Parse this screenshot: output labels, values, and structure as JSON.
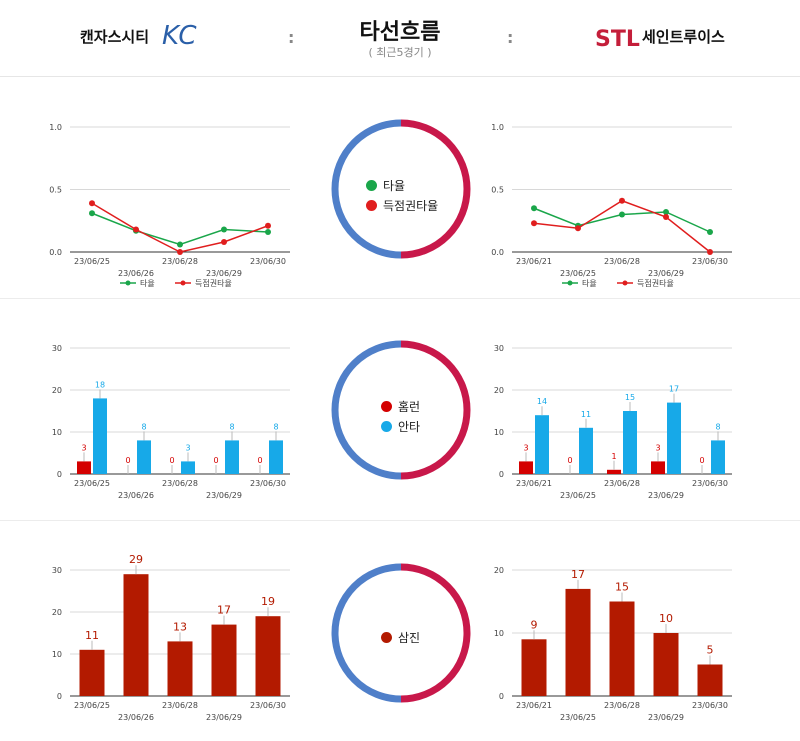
{
  "header": {
    "title": "타선흐름",
    "subtitle": "( 최근5경기 )",
    "left_team": "캔자스시티",
    "right_team": "세인트루이스",
    "left_logo": "KC",
    "right_logo": "STL",
    "colon": ":"
  },
  "colors": {
    "batting": "#1aa64a",
    "risp": "#e01e1e",
    "homerun": "#d40000",
    "hits": "#17a9e8",
    "strikeout": "#b31a00",
    "ring_left": "#4f7fc9",
    "ring_right": "#c8184a"
  },
  "legends": {
    "avg": "타율",
    "risp": "득점권타율",
    "hr": "홈런",
    "hits": "안타",
    "so": "삼진"
  },
  "chart_data": [
    {
      "id": "kc-avg",
      "type": "line",
      "categories": [
        "23/06/25",
        "23/06/26",
        "23/06/28",
        "23/06/29",
        "23/06/30"
      ],
      "series": [
        {
          "name": "타율",
          "values": [
            0.31,
            0.17,
            0.06,
            0.18,
            0.16
          ]
        },
        {
          "name": "득점권타율",
          "values": [
            0.39,
            0.18,
            0.0,
            0.08,
            0.21
          ]
        }
      ],
      "yticks": [
        "0.0",
        "0.5",
        "1.0"
      ],
      "ylim": [
        0,
        1
      ],
      "legend": "bottom"
    },
    {
      "id": "stl-avg",
      "type": "line",
      "categories": [
        "23/06/21",
        "23/06/25",
        "23/06/28",
        "23/06/29",
        "23/06/30"
      ],
      "series": [
        {
          "name": "타율",
          "values": [
            0.35,
            0.21,
            0.3,
            0.32,
            0.16
          ]
        },
        {
          "name": "득점권타율",
          "values": [
            0.23,
            0.19,
            0.41,
            0.28,
            0.0
          ]
        }
      ],
      "yticks": [
        "0.0",
        "0.5",
        "1.0"
      ],
      "ylim": [
        0,
        1
      ],
      "legend": "bottom"
    },
    {
      "id": "kc-hits",
      "type": "bar",
      "categories": [
        "23/06/25",
        "23/06/26",
        "23/06/28",
        "23/06/29",
        "23/06/30"
      ],
      "series": [
        {
          "name": "홈런",
          "values": [
            3,
            0,
            0,
            0,
            0
          ]
        },
        {
          "name": "안타",
          "values": [
            18,
            8,
            3,
            8,
            8
          ]
        }
      ],
      "yticks": [
        "0",
        "10",
        "20",
        "30"
      ],
      "ylim": [
        0,
        30
      ]
    },
    {
      "id": "stl-hits",
      "type": "bar",
      "categories": [
        "23/06/21",
        "23/06/25",
        "23/06/28",
        "23/06/29",
        "23/06/30"
      ],
      "series": [
        {
          "name": "홈런",
          "values": [
            3,
            0,
            1,
            3,
            0
          ]
        },
        {
          "name": "안타",
          "values": [
            14,
            11,
            15,
            17,
            8
          ]
        }
      ],
      "yticks": [
        "0",
        "10",
        "20",
        "30"
      ],
      "ylim": [
        0,
        30
      ]
    },
    {
      "id": "kc-so",
      "type": "bar",
      "categories": [
        "23/06/25",
        "23/06/26",
        "23/06/28",
        "23/06/29",
        "23/06/30"
      ],
      "series": [
        {
          "name": "삼진",
          "values": [
            11,
            29,
            13,
            17,
            19
          ]
        }
      ],
      "yticks": [
        "0",
        "10",
        "20",
        "30"
      ],
      "ylim": [
        0,
        30
      ]
    },
    {
      "id": "stl-so",
      "type": "bar",
      "categories": [
        "23/06/21",
        "23/06/25",
        "23/06/28",
        "23/06/29",
        "23/06/30"
      ],
      "series": [
        {
          "name": "삼진",
          "values": [
            9,
            17,
            15,
            10,
            5
          ]
        }
      ],
      "yticks": [
        "0",
        "10",
        "20"
      ],
      "ylim": [
        0,
        20
      ]
    }
  ]
}
